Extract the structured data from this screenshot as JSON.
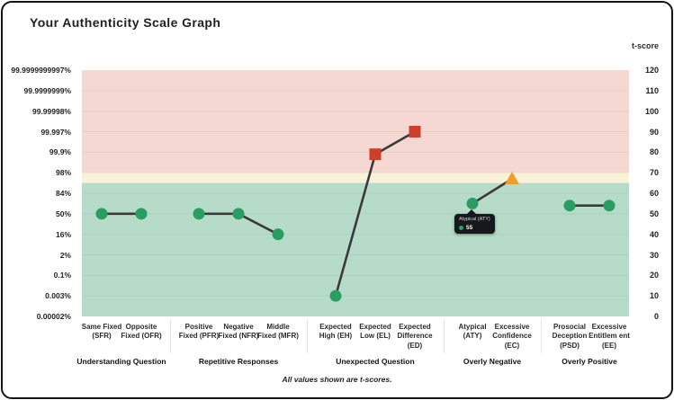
{
  "card": {
    "title": "Your Authenticity Scale Graph",
    "footnote": "All values shown are t-scores."
  },
  "chart_data": {
    "type": "line",
    "title": "Your Authenticity Scale Graph",
    "right_axis_label": "t-score",
    "ylim": [
      0,
      120
    ],
    "grid": true,
    "legend_position": "none",
    "left_axis_ticks": [
      "99.9999999997%",
      "99.9999999%",
      "99.99998%",
      "99.997%",
      "99.9%",
      "98%",
      "84%",
      "50%",
      "16%",
      "2%",
      "0.1%",
      "0.003%",
      "0.00002%"
    ],
    "right_axis_ticks": [
      120,
      110,
      100,
      90,
      80,
      70,
      60,
      50,
      40,
      30,
      20,
      10,
      0
    ],
    "line_color": "#3a3a3a",
    "zones": [
      {
        "name": "high-risk-zone",
        "from": 70,
        "to": 120,
        "color": "#f5d8d2"
      },
      {
        "name": "caution-zone",
        "from": 65,
        "to": 70,
        "color": "#faf1d9"
      },
      {
        "name": "normal-zone",
        "from": 0,
        "to": 65,
        "color": "#b7dbc9"
      }
    ],
    "groups": [
      {
        "label": "Understanding Question",
        "points": [
          {
            "label": "Same Fixed (SFR)",
            "t": 50,
            "marker": "circle",
            "color": "#2a9d64"
          },
          {
            "label": "Opposite Fixed (OFR)",
            "t": 50,
            "marker": "circle",
            "color": "#2a9d64"
          }
        ]
      },
      {
        "label": "Repetitive Responses",
        "points": [
          {
            "label": "Positive Fixed (PFR)",
            "t": 50,
            "marker": "circle",
            "color": "#2a9d64"
          },
          {
            "label": "Negative Fixed (NFR)",
            "t": 50,
            "marker": "circle",
            "color": "#2a9d64"
          },
          {
            "label": "Middle Fixed (MFR)",
            "t": 40,
            "marker": "circle",
            "color": "#2a9d64"
          }
        ]
      },
      {
        "label": "Unexpected Question",
        "points": [
          {
            "label": "Expected High (EH)",
            "t": 10,
            "marker": "circle",
            "color": "#2a9d64"
          },
          {
            "label": "Expected Low (EL)",
            "t": 79,
            "marker": "square",
            "color": "#cd3f28"
          },
          {
            "label": "Expected Difference (ED)",
            "t": 90,
            "marker": "square",
            "color": "#cd3f28"
          }
        ]
      },
      {
        "label": "Overly Negative",
        "points": [
          {
            "label": "Atypical (ATY)",
            "t": 55,
            "marker": "circle",
            "color": "#2a9d64"
          },
          {
            "label": "Excessive Confidence (EC)",
            "t": 67,
            "marker": "triangle",
            "color": "#f09d2b"
          }
        ]
      },
      {
        "label": "Overly Positive",
        "points": [
          {
            "label": "Prosocial Deception (PSD)",
            "t": 54,
            "marker": "circle",
            "color": "#2a9d64"
          },
          {
            "label": "Excessive Entitlem ent (EE)",
            "t": 54,
            "marker": "circle",
            "color": "#2a9d64"
          }
        ]
      }
    ],
    "tooltip": {
      "title": "Atypical (ATY)",
      "value": "55",
      "group_index": 3,
      "point_index": 0,
      "dot_color": "#2a9d64"
    }
  }
}
